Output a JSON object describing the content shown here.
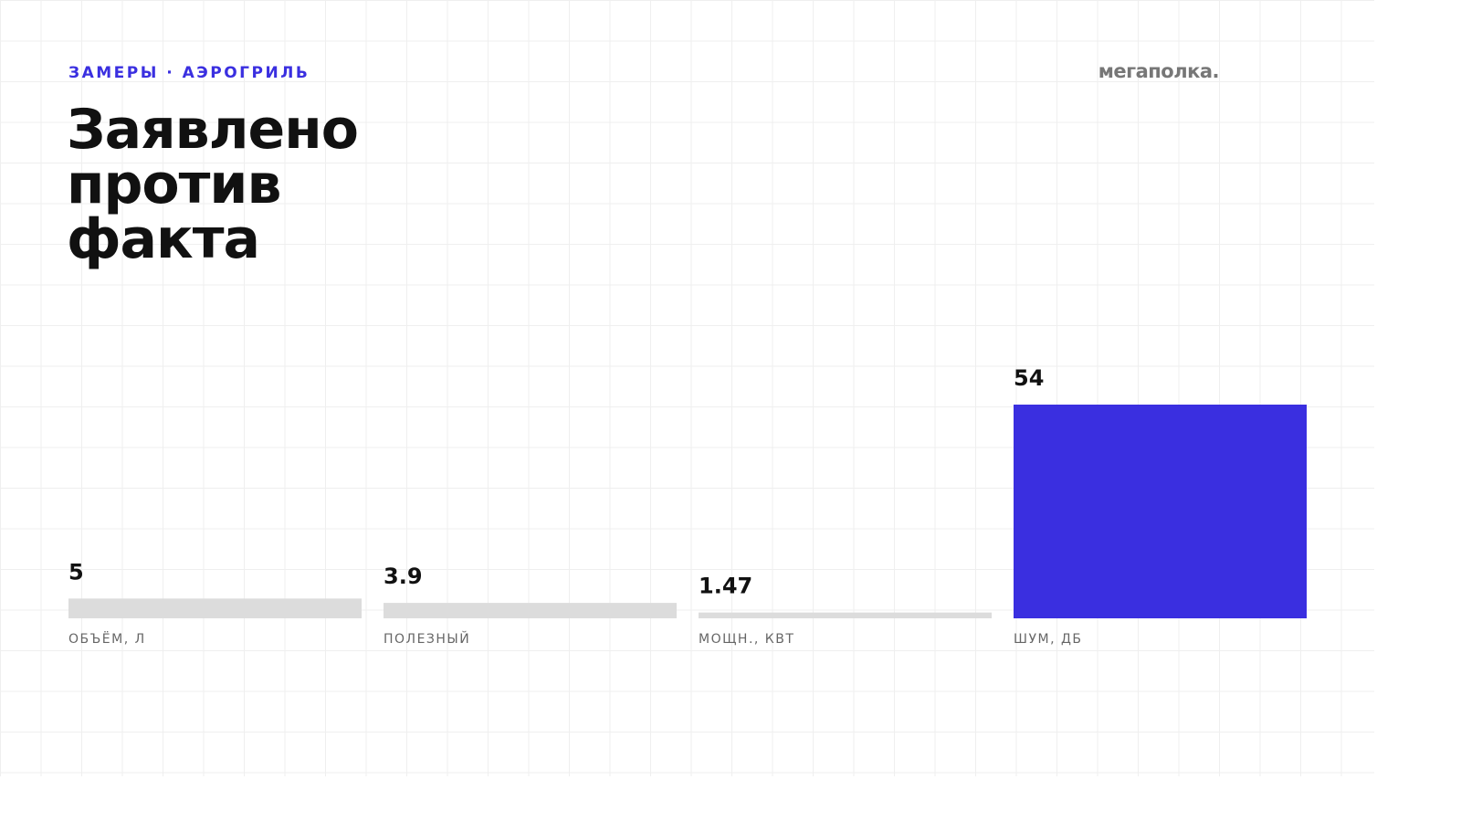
{
  "chart_data": {
    "type": "bar",
    "subtitle": "ЗАМЕРЫ · АЭРОГРИЛЬ",
    "brand": "мегаполка.",
    "title": "Заявлено против факта",
    "categories": [
      "ОБЪЁМ, Л",
      "ПОЛЕЗНЫЙ",
      "МОЩН., КВТ",
      "ШУМ, ДБ"
    ],
    "values": [
      5,
      3.9,
      1.47,
      54
    ],
    "colors": [
      "#dcdcdc",
      "#dcdcdc",
      "#dcdcdc",
      "#3a2fe0"
    ]
  }
}
